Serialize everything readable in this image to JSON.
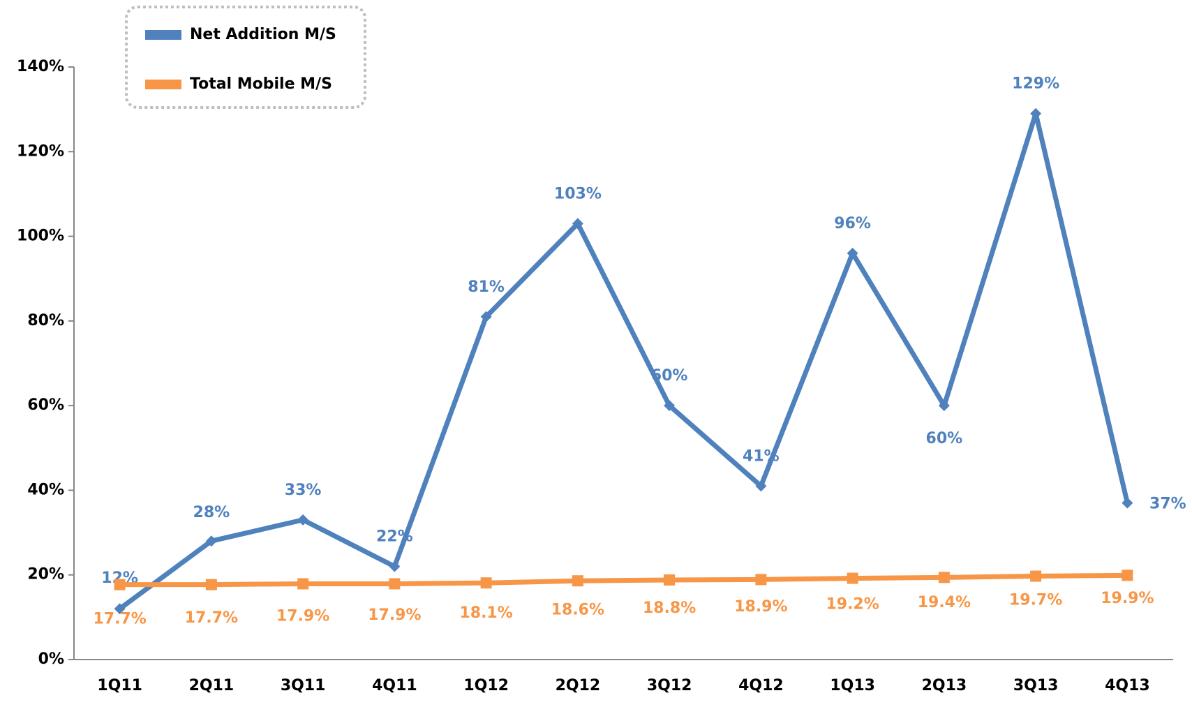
{
  "chart_data": {
    "type": "line",
    "categories": [
      "1Q11",
      "2Q11",
      "3Q11",
      "4Q11",
      "1Q12",
      "2Q12",
      "3Q12",
      "4Q12",
      "1Q13",
      "2Q13",
      "3Q13",
      "4Q13"
    ],
    "series": [
      {
        "name": "Net Addition M/S",
        "color": "#4f81bd",
        "values": [
          12,
          28,
          33,
          22,
          81,
          103,
          60,
          41,
          96,
          60,
          129,
          37
        ],
        "value_labels": [
          "12%",
          "28%",
          "33%",
          "22%",
          "81%",
          "103%",
          "60%",
          "41%",
          "96%",
          "60%",
          "129%",
          "37%"
        ]
      },
      {
        "name": "Total Mobile M/S",
        "color": "#f79646",
        "values": [
          17.7,
          17.7,
          17.9,
          17.9,
          18.1,
          18.6,
          18.8,
          18.9,
          19.2,
          19.4,
          19.7,
          19.9
        ],
        "value_labels": [
          "17.7%",
          "17.7%",
          "17.9%",
          "17.9%",
          "18.1%",
          "18.6%",
          "18.8%",
          "18.9%",
          "19.2%",
          "19.4%",
          "19.7%",
          "19.9%"
        ]
      }
    ],
    "ylim": [
      0,
      140
    ],
    "yticks": [
      {
        "value": 0,
        "label": "0%"
      },
      {
        "value": 20,
        "label": "20%"
      },
      {
        "value": 40,
        "label": "40%"
      },
      {
        "value": 60,
        "label": "60%"
      },
      {
        "value": 80,
        "label": "80%"
      },
      {
        "value": 100,
        "label": "100%"
      },
      {
        "value": 120,
        "label": "120%"
      },
      {
        "value": 140,
        "label": "140%"
      }
    ],
    "grid": false,
    "legend": "upper left"
  }
}
